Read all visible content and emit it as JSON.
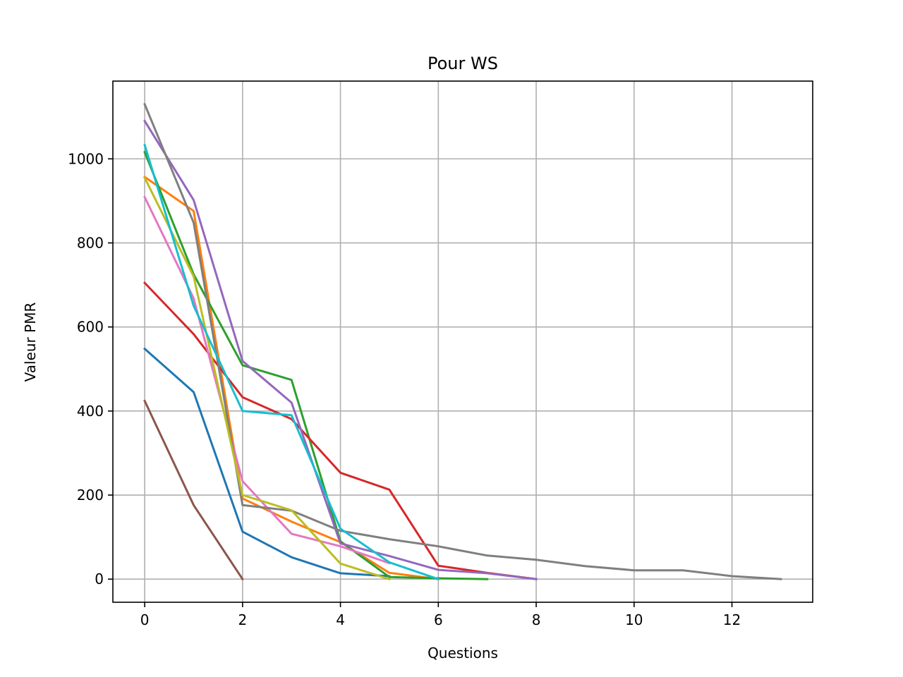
{
  "chart_data": {
    "type": "line",
    "title": "Pour WS",
    "xlabel": "Questions",
    "ylabel": "Valeur PMR",
    "xlim": [
      -0.65,
      13.65
    ],
    "ylim": [
      -55,
      1185
    ],
    "xticks": [
      0,
      2,
      4,
      6,
      8,
      10,
      12
    ],
    "yticks": [
      0,
      200,
      400,
      600,
      800,
      1000
    ],
    "grid": true,
    "series": [
      {
        "color": "#1f77b4",
        "x": [
          0,
          1,
          2,
          3,
          4,
          5
        ],
        "y": [
          548,
          445,
          113,
          52,
          14,
          7
        ]
      },
      {
        "color": "#ff7f0e",
        "x": [
          0,
          1,
          2,
          3,
          4,
          5,
          6
        ],
        "y": [
          957,
          876,
          192,
          137,
          88,
          15,
          0
        ]
      },
      {
        "color": "#2ca02c",
        "x": [
          0,
          1,
          2,
          3,
          4,
          5,
          6,
          7
        ],
        "y": [
          1016,
          725,
          509,
          474,
          90,
          5,
          2,
          0
        ]
      },
      {
        "color": "#d62728",
        "x": [
          0,
          1,
          2,
          3,
          4,
          5,
          6,
          7,
          8
        ],
        "y": [
          705,
          583,
          433,
          381,
          253,
          213,
          32,
          15,
          0
        ]
      },
      {
        "color": "#9467bd",
        "x": [
          0,
          1,
          2,
          3,
          4,
          5,
          6,
          7,
          8
        ],
        "y": [
          1090,
          902,
          519,
          420,
          85,
          55,
          22,
          14,
          0
        ]
      },
      {
        "color": "#8c564b",
        "x": [
          0,
          1,
          2
        ],
        "y": [
          424,
          176,
          0
        ]
      },
      {
        "color": "#e377c2",
        "x": [
          0,
          1,
          2,
          3,
          4,
          5
        ],
        "y": [
          909,
          668,
          233,
          108,
          78,
          38
        ]
      },
      {
        "color": "#7f7f7f",
        "x": [
          0,
          1,
          2,
          3,
          4,
          5,
          6,
          7,
          8,
          9,
          10,
          11,
          12,
          13
        ],
        "y": [
          1130,
          848,
          176,
          163,
          115,
          95,
          78,
          56,
          46,
          31,
          21,
          21,
          7,
          0
        ]
      },
      {
        "color": "#bcbd22",
        "x": [
          0,
          1,
          2,
          3,
          4,
          5
        ],
        "y": [
          955,
          720,
          200,
          164,
          37,
          0
        ]
      },
      {
        "color": "#17becf",
        "x": [
          0,
          1,
          2,
          3,
          4,
          5,
          6
        ],
        "y": [
          1033,
          650,
          400,
          390,
          120,
          40,
          0
        ]
      }
    ]
  }
}
